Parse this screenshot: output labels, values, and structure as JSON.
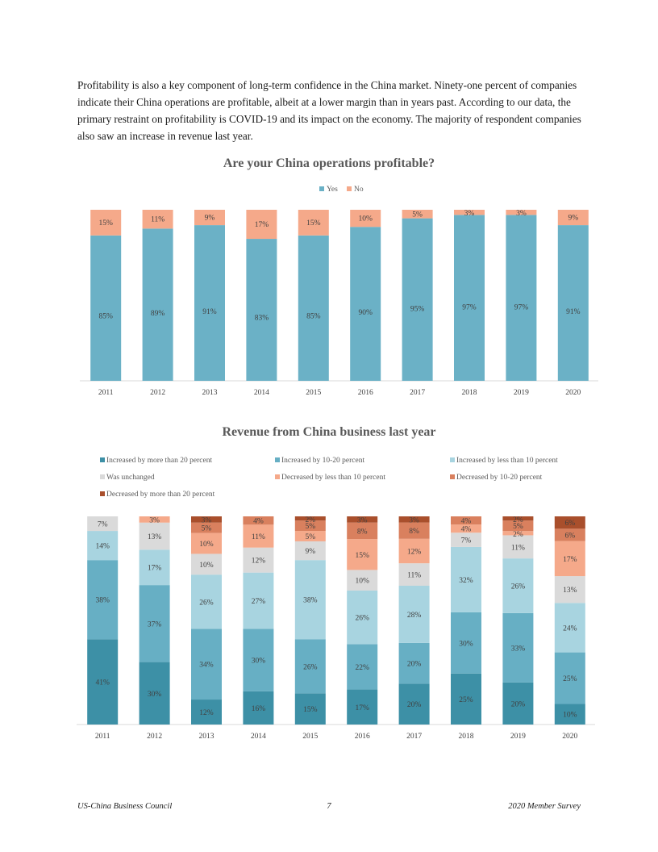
{
  "intro_text": "Profitability is also a key component of long-term confidence in the China market. Ninety-one percent of companies indicate their China operations are profitable, albeit at a lower margin than in years past. According to our data, the primary restraint on profitability is COVID-19 and its impact on the economy. The majority of respondent companies also saw an increase in revenue last year.",
  "footer": {
    "left": "US-China Business Council",
    "page": "7",
    "right": "2020 Member Survey"
  },
  "chart_data": [
    {
      "type": "bar",
      "stacked": true,
      "title": "Are your China operations profitable?",
      "legend_position": "top",
      "categories": [
        "2011",
        "2012",
        "2013",
        "2014",
        "2015",
        "2016",
        "2017",
        "2018",
        "2019",
        "2020"
      ],
      "series": [
        {
          "name": "Yes",
          "color": "#6bb1c6",
          "values": [
            85,
            89,
            91,
            83,
            85,
            90,
            95,
            97,
            97,
            91
          ]
        },
        {
          "name": "No",
          "color": "#f5a98a",
          "values": [
            15,
            11,
            9,
            17,
            15,
            10,
            5,
            3,
            3,
            9
          ]
        }
      ],
      "ylim": [
        0,
        100
      ],
      "value_suffix": "%"
    },
    {
      "type": "bar",
      "stacked": true,
      "title": "Revenue from China business last year",
      "legend_position": "top",
      "categories": [
        "2011",
        "2012",
        "2013",
        "2014",
        "2015",
        "2016",
        "2017",
        "2018",
        "2019",
        "2020"
      ],
      "series": [
        {
          "name": "Increased by more than 20 percent",
          "color": "#3d90a6",
          "values": [
            41,
            30,
            12,
            16,
            15,
            17,
            20,
            25,
            20,
            10
          ]
        },
        {
          "name": "Increased by 10-20 percent",
          "color": "#67afc4",
          "values": [
            38,
            37,
            34,
            30,
            26,
            22,
            20,
            30,
            33,
            25
          ]
        },
        {
          "name": "Increased by less than 10 percent",
          "color": "#a8d4e0",
          "values": [
            14,
            17,
            26,
            27,
            38,
            26,
            28,
            32,
            26,
            24
          ]
        },
        {
          "name": "Was unchanged",
          "color": "#dadada",
          "values": [
            7,
            13,
            10,
            12,
            9,
            10,
            11,
            7,
            11,
            13
          ]
        },
        {
          "name": "Decreased by less than 10 percent",
          "color": "#f5a98a",
          "values": [
            0,
            3,
            10,
            11,
            5,
            15,
            12,
            4,
            2,
            17
          ]
        },
        {
          "name": "Decreased by 10-20 percent",
          "color": "#d9805e",
          "values": [
            0,
            0,
            5,
            4,
            5,
            8,
            8,
            4,
            5,
            6
          ]
        },
        {
          "name": "Decreased by more than 20 percent",
          "color": "#a94f2c",
          "values": [
            0,
            0,
            3,
            0,
            2,
            3,
            3,
            0,
            2,
            6
          ]
        }
      ],
      "ylim": [
        0,
        100
      ],
      "value_suffix": "%"
    }
  ]
}
